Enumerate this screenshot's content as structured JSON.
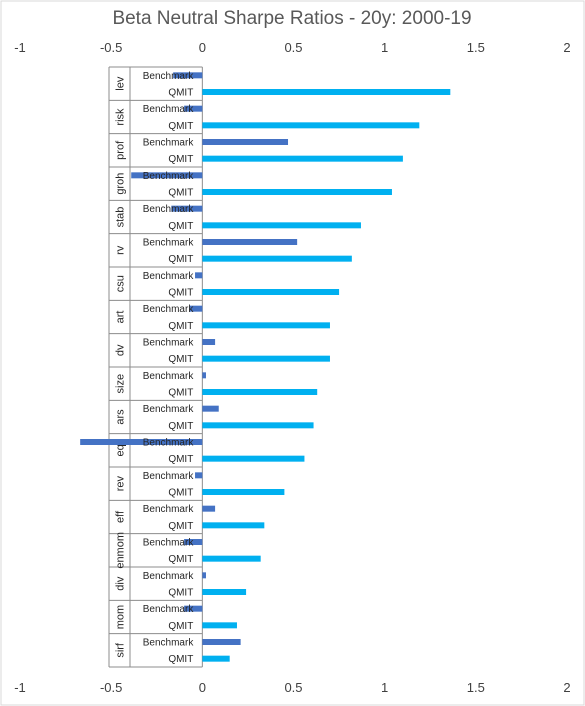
{
  "chart_data": {
    "type": "bar",
    "orientation": "horizontal",
    "title": "Beta Neutral Sharpe Ratios - 20y: 2000-19",
    "xlim": [
      -1,
      2
    ],
    "x_ticks": [
      "-1",
      "-0.5",
      "0",
      "0.5",
      "1",
      "1.5",
      "2"
    ],
    "grid": false,
    "legend": "none",
    "series_colors": {
      "Benchmark": "#4472C4",
      "QMIT": "#00B0F0"
    },
    "groups": [
      {
        "name": "lev",
        "Benchmark": -0.16,
        "QMIT": 1.36
      },
      {
        "name": "risk",
        "Benchmark": -0.1,
        "QMIT": 1.19
      },
      {
        "name": "prof",
        "Benchmark": 0.47,
        "QMIT": 1.1
      },
      {
        "name": "groh",
        "Benchmark": -0.39,
        "QMIT": 1.04
      },
      {
        "name": "stab",
        "Benchmark": -0.17,
        "QMIT": 0.87
      },
      {
        "name": "rv",
        "Benchmark": 0.52,
        "QMIT": 0.82
      },
      {
        "name": "csu",
        "Benchmark": -0.04,
        "QMIT": 0.75
      },
      {
        "name": "art",
        "Benchmark": -0.07,
        "QMIT": 0.7
      },
      {
        "name": "dv",
        "Benchmark": 0.07,
        "QMIT": 0.7
      },
      {
        "name": "size",
        "Benchmark": 0.02,
        "QMIT": 0.63
      },
      {
        "name": "ars",
        "Benchmark": 0.09,
        "QMIT": 0.61
      },
      {
        "name": "eq",
        "Benchmark": -0.67,
        "QMIT": 0.56
      },
      {
        "name": "rev",
        "Benchmark": -0.04,
        "QMIT": 0.45
      },
      {
        "name": "eff",
        "Benchmark": 0.07,
        "QMIT": 0.34
      },
      {
        "name": "enmom",
        "Benchmark": -0.1,
        "QMIT": 0.32
      },
      {
        "name": "div",
        "Benchmark": 0.02,
        "QMIT": 0.24
      },
      {
        "name": "mom",
        "Benchmark": -0.1,
        "QMIT": 0.19
      },
      {
        "name": "sirf",
        "Benchmark": 0.21,
        "QMIT": 0.15
      }
    ]
  }
}
